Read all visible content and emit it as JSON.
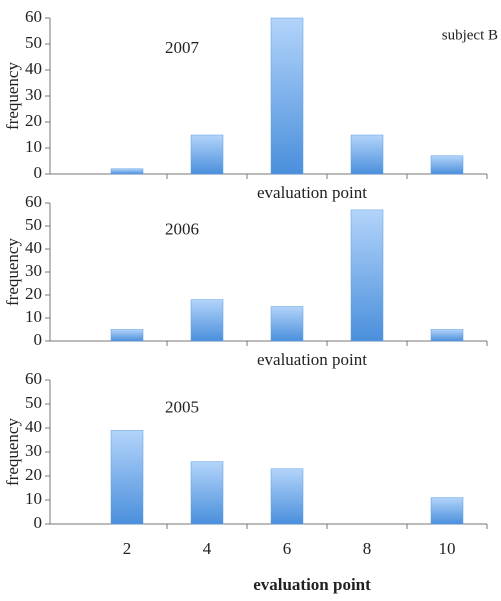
{
  "chart_data": [
    {
      "type": "bar",
      "annotation": "2007",
      "note": "subject B",
      "x_label": "evaluation point",
      "y_label": "frequency",
      "categories": [
        null,
        null,
        null,
        null,
        null
      ],
      "values": [
        2,
        15,
        60,
        15,
        7
      ],
      "ylim": [
        0,
        60
      ],
      "yticks": [
        0,
        10,
        20,
        30,
        40,
        50,
        60
      ],
      "color": "#5b9de6"
    },
    {
      "type": "bar",
      "annotation": "2006",
      "x_label": "evaluation point",
      "y_label": "frequency",
      "categories": [
        null,
        null,
        null,
        null,
        null
      ],
      "values": [
        5,
        18,
        15,
        57,
        5
      ],
      "ylim": [
        0,
        60
      ],
      "yticks": [
        0,
        10,
        20,
        30,
        40,
        50,
        60
      ],
      "color": "#5b9de6"
    },
    {
      "type": "bar",
      "annotation": "2005",
      "x_label": "evaluation point",
      "y_label": "frequency",
      "categories": [
        "2",
        "4",
        "6",
        "8",
        "10"
      ],
      "values": [
        39,
        26,
        23,
        0,
        11
      ],
      "ylim": [
        0,
        60
      ],
      "yticks": [
        0,
        10,
        20,
        30,
        40,
        50,
        60
      ],
      "color": "#5b9de6"
    }
  ]
}
